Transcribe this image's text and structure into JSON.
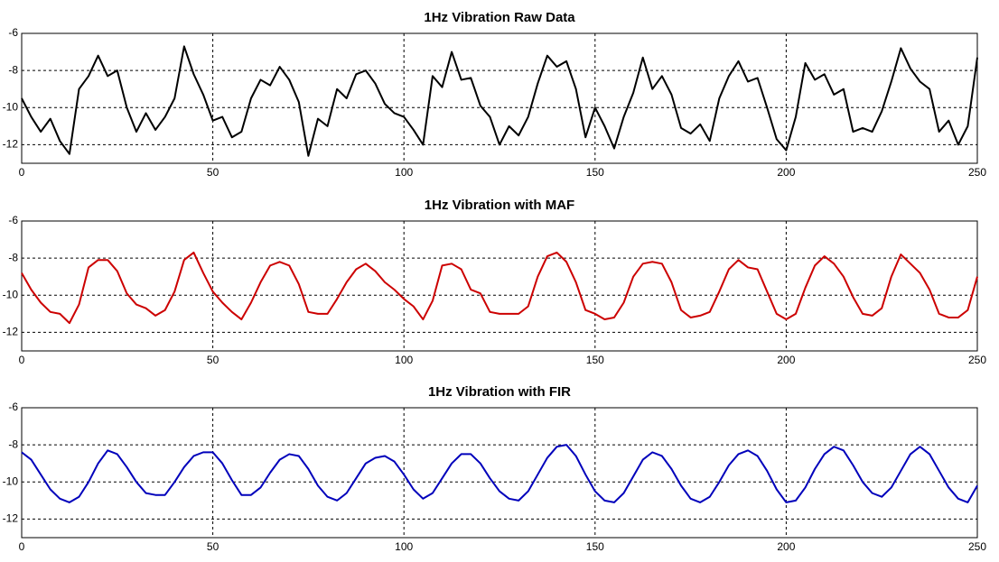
{
  "chart_data": [
    {
      "type": "line",
      "title": "1Hz Vibration Raw Data",
      "x": [
        0,
        2.5,
        5,
        7.5,
        10,
        12.5,
        15,
        17.5,
        20,
        22.5,
        25,
        27.5,
        30,
        32.5,
        35,
        37.5,
        40,
        42.5,
        45,
        47.5,
        50,
        52.5,
        55,
        57.5,
        60,
        62.5,
        65,
        67.5,
        70,
        72.5,
        75,
        77.5,
        80,
        82.5,
        85,
        87.5,
        90,
        92.5,
        95,
        97.5,
        100,
        102.5,
        105,
        107.5,
        110,
        112.5,
        115,
        117.5,
        120,
        122.5,
        125,
        127.5,
        130,
        132.5,
        135,
        137.5,
        140,
        142.5,
        145,
        147.5,
        150,
        152.5,
        155,
        157.5,
        160,
        162.5,
        165,
        167.5,
        170,
        172.5,
        175,
        177.5,
        180,
        182.5,
        185,
        187.5,
        190,
        192.5,
        195,
        197.5,
        200,
        202.5,
        205,
        207.5,
        210,
        212.5,
        215,
        217.5,
        220,
        222.5,
        225,
        227.5,
        230,
        232.5,
        235,
        237.5,
        240,
        242.5,
        245,
        247.5,
        250
      ],
      "series": [
        {
          "color": "#000000",
          "values": [
            -9.5,
            -10.5,
            -11.3,
            -10.6,
            -11.8,
            -12.5,
            -9,
            -8.3,
            -7.2,
            -8.3,
            -8,
            -10,
            -11.3,
            -10.3,
            -11.2,
            -10.5,
            -9.5,
            -6.7,
            -8.2,
            -9.3,
            -10.7,
            -10.5,
            -11.6,
            -11.3,
            -9.5,
            -8.5,
            -8.8,
            -7.8,
            -8.5,
            -9.7,
            -12.6,
            -10.6,
            -11,
            -9,
            -9.5,
            -8.2,
            -8,
            -8.7,
            -9.8,
            -10.3,
            -10.5,
            -11.2,
            -12,
            -8.3,
            -8.9,
            -7,
            -8.5,
            -8.4,
            -9.9,
            -10.5,
            -12,
            -11,
            -11.5,
            -10.5,
            -8.7,
            -7.2,
            -7.8,
            -7.5,
            -9,
            -11.6,
            -10,
            -11,
            -12.2,
            -10.5,
            -9.2,
            -7.3,
            -9,
            -8.3,
            -9.3,
            -11.1,
            -11.4,
            -10.9,
            -11.8,
            -9.5,
            -8.3,
            -7.5,
            -8.6,
            -8.4,
            -10,
            -11.7,
            -12.3,
            -10.5,
            -7.6,
            -8.5,
            -8.2,
            -9.3,
            -9,
            -11.3,
            -11.1,
            -11.3,
            -10.2,
            -8.6,
            -6.8,
            -7.9,
            -8.6,
            -9,
            -11.3,
            -10.7,
            -12,
            -11,
            -7.3
          ]
        }
      ],
      "xlim": [
        0,
        250
      ],
      "ylim": [
        -13,
        -6
      ],
      "xticks": [
        0,
        50,
        100,
        150,
        200,
        250
      ],
      "yticks": [
        -12,
        -10,
        -8,
        -6
      ],
      "grid": true
    },
    {
      "type": "line",
      "title": "1Hz Vibration with MAF",
      "x": [
        0,
        2.5,
        5,
        7.5,
        10,
        12.5,
        15,
        17.5,
        20,
        22.5,
        25,
        27.5,
        30,
        32.5,
        35,
        37.5,
        40,
        42.5,
        45,
        47.5,
        50,
        52.5,
        55,
        57.5,
        60,
        62.5,
        65,
        67.5,
        70,
        72.5,
        75,
        77.5,
        80,
        82.5,
        85,
        87.5,
        90,
        92.5,
        95,
        97.5,
        100,
        102.5,
        105,
        107.5,
        110,
        112.5,
        115,
        117.5,
        120,
        122.5,
        125,
        127.5,
        130,
        132.5,
        135,
        137.5,
        140,
        142.5,
        145,
        147.5,
        150,
        152.5,
        155,
        157.5,
        160,
        162.5,
        165,
        167.5,
        170,
        172.5,
        175,
        177.5,
        180,
        182.5,
        185,
        187.5,
        190,
        192.5,
        195,
        197.5,
        200,
        202.5,
        205,
        207.5,
        210,
        212.5,
        215,
        217.5,
        220,
        222.5,
        225,
        227.5,
        230,
        232.5,
        235,
        237.5,
        240,
        242.5,
        245,
        247.5,
        250
      ],
      "series": [
        {
          "color": "#cc0000",
          "values": [
            -8.8,
            -9.7,
            -10.4,
            -10.9,
            -11,
            -11.5,
            -10.5,
            -8.5,
            -8.1,
            -8.1,
            -8.7,
            -9.9,
            -10.5,
            -10.7,
            -11.1,
            -10.8,
            -9.8,
            -8.1,
            -7.7,
            -8.8,
            -9.8,
            -10.4,
            -10.9,
            -11.3,
            -10.4,
            -9.3,
            -8.4,
            -8.2,
            -8.4,
            -9.4,
            -10.9,
            -11,
            -11,
            -10.2,
            -9.3,
            -8.6,
            -8.3,
            -8.7,
            -9.3,
            -9.7,
            -10.2,
            -10.6,
            -11.3,
            -10.3,
            -8.4,
            -8.3,
            -8.6,
            -9.7,
            -9.9,
            -10.9,
            -11,
            -11,
            -11,
            -10.6,
            -9,
            -7.9,
            -7.7,
            -8.2,
            -9.3,
            -10.8,
            -11,
            -11.3,
            -11.2,
            -10.4,
            -9,
            -8.3,
            -8.2,
            -8.3,
            -9.3,
            -10.8,
            -11.2,
            -11.1,
            -10.9,
            -9.8,
            -8.6,
            -8.1,
            -8.5,
            -8.6,
            -9.8,
            -11,
            -11.3,
            -11,
            -9.6,
            -8.4,
            -7.9,
            -8.3,
            -9,
            -10.1,
            -11,
            -11.1,
            -10.7,
            -9,
            -7.8,
            -8.3,
            -8.8,
            -9.7,
            -11,
            -11.2,
            -11.2,
            -10.8,
            -9
          ]
        }
      ],
      "xlim": [
        0,
        250
      ],
      "ylim": [
        -13,
        -6
      ],
      "xticks": [
        0,
        50,
        100,
        150,
        200,
        250
      ],
      "yticks": [
        -12,
        -10,
        -8,
        -6
      ],
      "grid": true
    },
    {
      "type": "line",
      "title": "1Hz Vibration with FIR",
      "x": [
        0,
        2.5,
        5,
        7.5,
        10,
        12.5,
        15,
        17.5,
        20,
        22.5,
        25,
        27.5,
        30,
        32.5,
        35,
        37.5,
        40,
        42.5,
        45,
        47.5,
        50,
        52.5,
        55,
        57.5,
        60,
        62.5,
        65,
        67.5,
        70,
        72.5,
        75,
        77.5,
        80,
        82.5,
        85,
        87.5,
        90,
        92.5,
        95,
        97.5,
        100,
        102.5,
        105,
        107.5,
        110,
        112.5,
        115,
        117.5,
        120,
        122.5,
        125,
        127.5,
        130,
        132.5,
        135,
        137.5,
        140,
        142.5,
        145,
        147.5,
        150,
        152.5,
        155,
        157.5,
        160,
        162.5,
        165,
        167.5,
        170,
        172.5,
        175,
        177.5,
        180,
        182.5,
        185,
        187.5,
        190,
        192.5,
        195,
        197.5,
        200,
        202.5,
        205,
        207.5,
        210,
        212.5,
        215,
        217.5,
        220,
        222.5,
        225,
        227.5,
        230,
        232.5,
        235,
        237.5,
        240,
        242.5,
        245,
        247.5,
        250
      ],
      "series": [
        {
          "color": "#0000bb",
          "values": [
            -8.4,
            -8.8,
            -9.6,
            -10.4,
            -10.9,
            -11.1,
            -10.8,
            -10,
            -9,
            -8.3,
            -8.5,
            -9.2,
            -10,
            -10.6,
            -10.7,
            -10.7,
            -10,
            -9.2,
            -8.6,
            -8.4,
            -8.4,
            -9,
            -9.9,
            -10.7,
            -10.7,
            -10.3,
            -9.5,
            -8.8,
            -8.5,
            -8.6,
            -9.3,
            -10.2,
            -10.8,
            -11,
            -10.6,
            -9.8,
            -9,
            -8.7,
            -8.6,
            -8.9,
            -9.6,
            -10.4,
            -10.9,
            -10.6,
            -9.8,
            -9,
            -8.5,
            -8.5,
            -9,
            -9.8,
            -10.5,
            -10.9,
            -11,
            -10.5,
            -9.6,
            -8.7,
            -8.1,
            -8,
            -8.6,
            -9.6,
            -10.5,
            -11,
            -11.1,
            -10.6,
            -9.7,
            -8.8,
            -8.4,
            -8.6,
            -9.3,
            -10.2,
            -10.9,
            -11.1,
            -10.8,
            -10,
            -9.1,
            -8.5,
            -8.3,
            -8.6,
            -9.4,
            -10.4,
            -11.1,
            -11,
            -10.3,
            -9.3,
            -8.5,
            -8.1,
            -8.3,
            -9.1,
            -10,
            -10.6,
            -10.8,
            -10.3,
            -9.4,
            -8.5,
            -8.1,
            -8.5,
            -9.4,
            -10.3,
            -10.9,
            -11.1,
            -10.2
          ]
        }
      ],
      "xlim": [
        0,
        250
      ],
      "ylim": [
        -13,
        -6
      ],
      "xticks": [
        0,
        50,
        100,
        150,
        200,
        250
      ],
      "yticks": [
        -12,
        -10,
        -8,
        -6
      ],
      "grid": true
    }
  ]
}
